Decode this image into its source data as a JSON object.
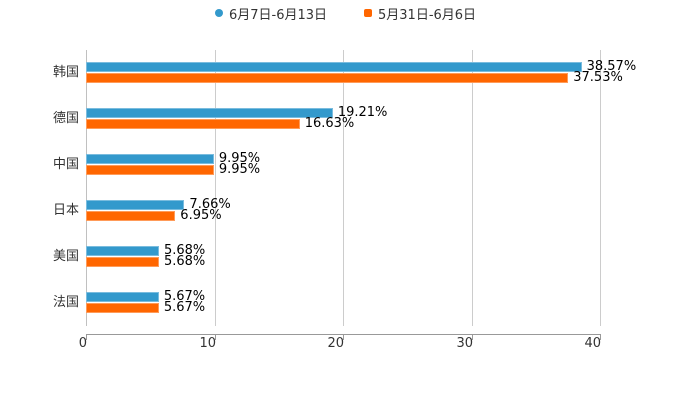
{
  "chart_data": {
    "type": "bar",
    "orientation": "horizontal",
    "title": "",
    "xlabel": "",
    "ylabel": "",
    "xlim": [
      0,
      40
    ],
    "x_ticks": [
      "0",
      "10",
      "20",
      "30",
      "40"
    ],
    "grid": true,
    "legend_position": "top",
    "categories": [
      "韩国",
      "德国",
      "中国",
      "日本",
      "美国",
      "法国"
    ],
    "series": [
      {
        "name": "6月7日-6月13日",
        "color": "#3399cc",
        "marker": "circle",
        "values": [
          38.57,
          19.21,
          9.95,
          7.66,
          5.68,
          5.67
        ],
        "labels": [
          "38.57%",
          "19.21%",
          "9.95%",
          "7.66%",
          "5.68%",
          "5.67%"
        ]
      },
      {
        "name": "5月31日-6月6日",
        "color": "#ff6600",
        "marker": "square",
        "values": [
          37.53,
          16.63,
          9.95,
          6.95,
          5.68,
          5.67
        ],
        "labels": [
          "37.53%",
          "16.63%",
          "9.95%",
          "6.95%",
          "5.68%",
          "5.67%"
        ]
      }
    ]
  },
  "legend": {
    "items": [
      {
        "label": "6月7日-6月13日",
        "color": "#3399cc",
        "icon": "circle-marker-icon"
      },
      {
        "label": "5月31日-6月6日",
        "color": "#ff6600",
        "icon": "square-marker-icon"
      }
    ]
  }
}
